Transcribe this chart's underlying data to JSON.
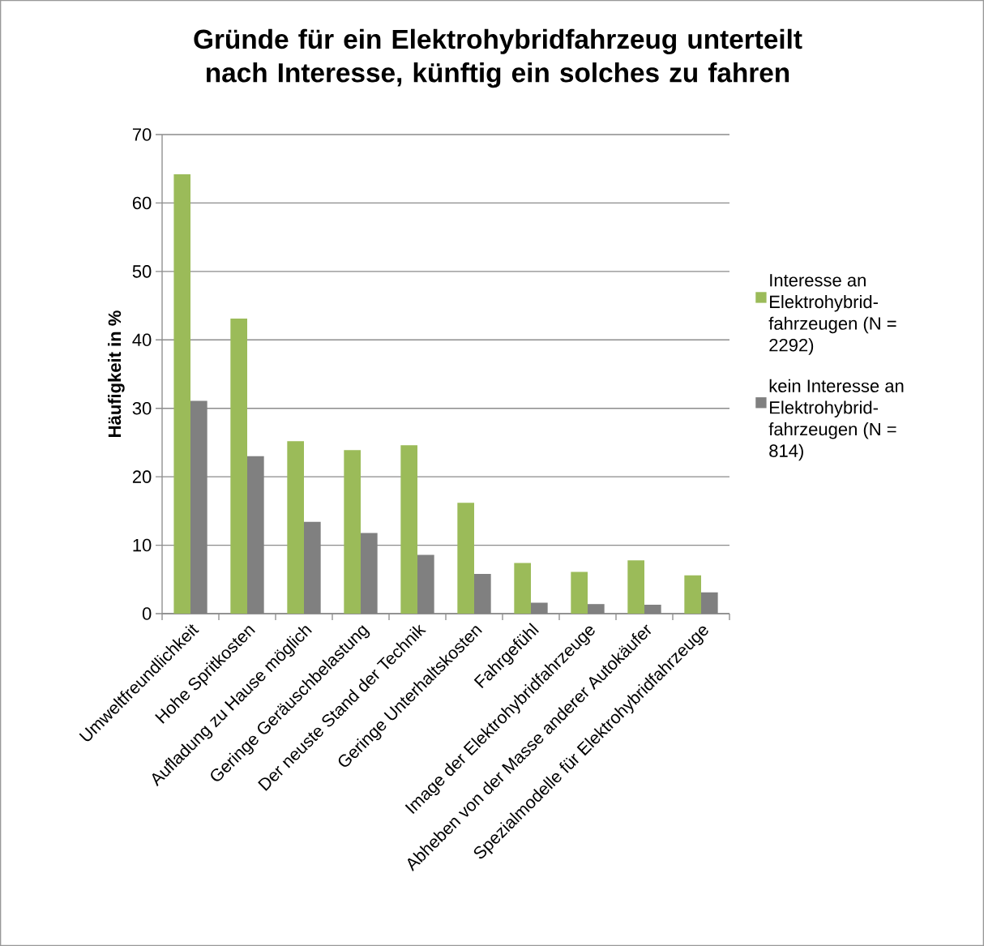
{
  "chart_data": {
    "type": "bar",
    "title": "Gründe für ein Elektrohybridfahrzeug unterteilt nach Interesse, künftig ein solches zu fahren",
    "ylabel": "Häufigkeit in %",
    "categories": [
      "Umweltfreundlichkeit",
      "Hohe Spritkosten",
      "Aufladung zu Hause möglich",
      "Geringe Geräuschbelastung",
      "Der neuste Stand der Technik",
      "Geringe Unterhaltskosten",
      "Fahrgefühl",
      "Image der Elektrohybridfahrzeuge",
      "Abheben von der Masse anderer Autokäufer",
      "Spezialmodelle für Elektrohybridfahrzeuge"
    ],
    "series": [
      {
        "name": "Interesse an Elektrohybrid-fahrzeugen (N = 2292)",
        "color": "#9bbb59",
        "values": [
          64.2,
          43.1,
          25.2,
          23.9,
          24.6,
          16.2,
          7.4,
          6.1,
          7.8,
          5.6
        ]
      },
      {
        "name": "kein Interesse an Elektrohybrid-fahrzeugen (N = 814)",
        "color": "#808080",
        "values": [
          31.1,
          23.0,
          13.4,
          11.8,
          8.6,
          5.8,
          1.6,
          1.4,
          1.3,
          3.1
        ]
      }
    ],
    "ylim": [
      0,
      70
    ],
    "yticks": [
      0,
      10,
      20,
      30,
      40,
      50,
      60,
      70
    ],
    "grid": "y",
    "legend": "right"
  }
}
